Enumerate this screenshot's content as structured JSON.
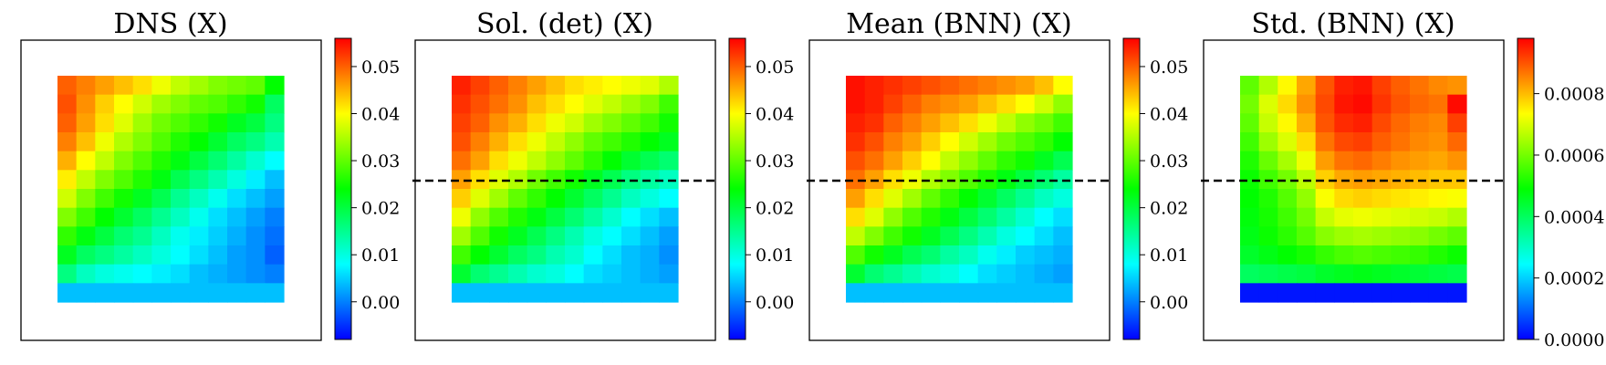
{
  "colors": [
    "#0000ff",
    "#0080ff",
    "#00ffff",
    "#00ff80",
    "#00ff00",
    "#80ff00",
    "#ffff00",
    "#ff8000",
    "#ff0000"
  ],
  "chart_data": [
    {
      "type": "heatmap",
      "title": "DNS (X)",
      "colorbar": {
        "min": -0.008,
        "max": 0.056,
        "ticks": [
          0.0,
          0.01,
          0.02,
          0.03,
          0.04,
          0.05
        ],
        "tick_labels": [
          "0.00",
          "0.01",
          "0.02",
          "0.03",
          "0.04",
          "0.05"
        ]
      },
      "dashed_line": false,
      "grid": [
        [
          0.05,
          0.048,
          0.046,
          0.044,
          0.042,
          0.039,
          0.036,
          0.034,
          0.032,
          0.031,
          0.03,
          0.024
        ],
        [
          0.051,
          0.047,
          0.043,
          0.04,
          0.037,
          0.034,
          0.032,
          0.03,
          0.029,
          0.027,
          0.025,
          0.018
        ],
        [
          0.05,
          0.046,
          0.042,
          0.038,
          0.034,
          0.031,
          0.029,
          0.027,
          0.025,
          0.022,
          0.02,
          0.016
        ],
        [
          0.048,
          0.044,
          0.039,
          0.035,
          0.032,
          0.029,
          0.026,
          0.024,
          0.021,
          0.018,
          0.016,
          0.013
        ],
        [
          0.045,
          0.04,
          0.036,
          0.032,
          0.029,
          0.026,
          0.023,
          0.02,
          0.017,
          0.014,
          0.011,
          0.008
        ],
        [
          0.041,
          0.036,
          0.032,
          0.029,
          0.026,
          0.023,
          0.019,
          0.016,
          0.013,
          0.01,
          0.007,
          0.004
        ],
        [
          0.037,
          0.032,
          0.028,
          0.025,
          0.022,
          0.019,
          0.015,
          0.012,
          0.009,
          0.006,
          0.004,
          0.002
        ],
        [
          0.032,
          0.028,
          0.024,
          0.021,
          0.018,
          0.015,
          0.012,
          0.009,
          0.006,
          0.004,
          0.002,
          0.0
        ],
        [
          0.027,
          0.023,
          0.02,
          0.017,
          0.015,
          0.012,
          0.009,
          0.007,
          0.005,
          0.003,
          0.001,
          -0.001
        ],
        [
          0.022,
          0.018,
          0.016,
          0.014,
          0.012,
          0.01,
          0.008,
          0.006,
          0.004,
          0.002,
          0.001,
          -0.002
        ],
        [
          0.016,
          0.012,
          0.01,
          0.009,
          0.008,
          0.007,
          0.006,
          0.004,
          0.003,
          0.002,
          0.001,
          0.0
        ],
        [
          0.004,
          0.004,
          0.004,
          0.004,
          0.004,
          0.004,
          0.004,
          0.004,
          0.004,
          0.004,
          0.004,
          0.004
        ]
      ]
    },
    {
      "type": "heatmap",
      "title": "Sol. (det) (X)",
      "colorbar": {
        "min": -0.008,
        "max": 0.056,
        "ticks": [
          0.0,
          0.01,
          0.02,
          0.03,
          0.04,
          0.05
        ],
        "tick_labels": [
          "0.00",
          "0.01",
          "0.02",
          "0.03",
          "0.04",
          "0.05"
        ]
      },
      "dashed_line": true,
      "grid": [
        [
          0.054,
          0.052,
          0.05,
          0.048,
          0.046,
          0.044,
          0.042,
          0.041,
          0.04,
          0.039,
          0.038,
          0.035
        ],
        [
          0.053,
          0.051,
          0.049,
          0.047,
          0.044,
          0.042,
          0.04,
          0.038,
          0.036,
          0.034,
          0.032,
          0.028
        ],
        [
          0.052,
          0.05,
          0.047,
          0.045,
          0.042,
          0.039,
          0.037,
          0.034,
          0.032,
          0.03,
          0.028,
          0.025
        ],
        [
          0.051,
          0.048,
          0.045,
          0.042,
          0.039,
          0.036,
          0.033,
          0.03,
          0.028,
          0.026,
          0.024,
          0.022
        ],
        [
          0.049,
          0.046,
          0.042,
          0.039,
          0.036,
          0.033,
          0.03,
          0.027,
          0.024,
          0.021,
          0.019,
          0.017
        ],
        [
          0.046,
          0.042,
          0.038,
          0.035,
          0.031,
          0.028,
          0.025,
          0.022,
          0.019,
          0.016,
          0.014,
          0.012
        ],
        [
          0.043,
          0.038,
          0.034,
          0.03,
          0.027,
          0.024,
          0.021,
          0.018,
          0.015,
          0.012,
          0.01,
          0.008
        ],
        [
          0.039,
          0.033,
          0.029,
          0.026,
          0.023,
          0.02,
          0.017,
          0.014,
          0.011,
          0.008,
          0.006,
          0.004
        ],
        [
          0.034,
          0.029,
          0.025,
          0.022,
          0.019,
          0.016,
          0.013,
          0.01,
          0.008,
          0.006,
          0.004,
          0.002
        ],
        [
          0.028,
          0.024,
          0.021,
          0.018,
          0.016,
          0.013,
          0.011,
          0.008,
          0.006,
          0.004,
          0.003,
          0.001
        ],
        [
          0.021,
          0.017,
          0.015,
          0.013,
          0.011,
          0.01,
          0.008,
          0.006,
          0.005,
          0.004,
          0.003,
          0.002
        ],
        [
          0.004,
          0.004,
          0.004,
          0.004,
          0.004,
          0.004,
          0.004,
          0.004,
          0.004,
          0.004,
          0.004,
          0.004
        ]
      ]
    },
    {
      "type": "heatmap",
      "title": "Mean (BNN) (X)",
      "colorbar": {
        "min": -0.008,
        "max": 0.056,
        "ticks": [
          0.0,
          0.01,
          0.02,
          0.03,
          0.04,
          0.05
        ],
        "tick_labels": [
          "0.00",
          "0.01",
          "0.02",
          "0.03",
          "0.04",
          "0.05"
        ]
      },
      "dashed_line": true,
      "grid": [
        [
          0.055,
          0.054,
          0.053,
          0.052,
          0.051,
          0.05,
          0.049,
          0.048,
          0.047,
          0.046,
          0.044,
          0.04
        ],
        [
          0.055,
          0.054,
          0.052,
          0.05,
          0.048,
          0.047,
          0.046,
          0.044,
          0.042,
          0.04,
          0.037,
          0.033
        ],
        [
          0.054,
          0.053,
          0.05,
          0.048,
          0.046,
          0.044,
          0.042,
          0.039,
          0.036,
          0.033,
          0.031,
          0.028
        ],
        [
          0.053,
          0.051,
          0.048,
          0.046,
          0.043,
          0.04,
          0.037,
          0.034,
          0.031,
          0.029,
          0.027,
          0.024
        ],
        [
          0.051,
          0.049,
          0.046,
          0.043,
          0.04,
          0.036,
          0.033,
          0.03,
          0.027,
          0.025,
          0.022,
          0.019
        ],
        [
          0.049,
          0.046,
          0.042,
          0.039,
          0.035,
          0.032,
          0.029,
          0.026,
          0.023,
          0.02,
          0.017,
          0.014
        ],
        [
          0.046,
          0.042,
          0.038,
          0.034,
          0.03,
          0.027,
          0.024,
          0.021,
          0.018,
          0.015,
          0.012,
          0.01
        ],
        [
          0.042,
          0.038,
          0.033,
          0.029,
          0.026,
          0.023,
          0.02,
          0.017,
          0.014,
          0.011,
          0.008,
          0.006
        ],
        [
          0.036,
          0.032,
          0.028,
          0.025,
          0.022,
          0.019,
          0.016,
          0.013,
          0.01,
          0.008,
          0.006,
          0.004
        ],
        [
          0.029,
          0.025,
          0.022,
          0.019,
          0.017,
          0.014,
          0.012,
          0.009,
          0.007,
          0.005,
          0.004,
          0.003
        ],
        [
          0.021,
          0.017,
          0.015,
          0.013,
          0.011,
          0.01,
          0.008,
          0.006,
          0.005,
          0.004,
          0.003,
          0.002
        ],
        [
          0.004,
          0.004,
          0.004,
          0.004,
          0.004,
          0.004,
          0.004,
          0.004,
          0.004,
          0.004,
          0.004,
          0.004
        ]
      ]
    },
    {
      "type": "heatmap",
      "title": "Std. (BNN) (X)",
      "colorbar": {
        "min": 0.0,
        "max": 0.00098,
        "ticks": [
          0.0,
          0.0002,
          0.0004,
          0.0006,
          0.0008
        ],
        "tick_labels": [
          "0.0000",
          "0.0002",
          "0.0004",
          "0.0006",
          "0.0008"
        ]
      },
      "dashed_line": true,
      "grid": [
        [
          0.00058,
          0.00066,
          0.00074,
          0.00082,
          0.0009,
          0.00095,
          0.00096,
          0.00092,
          0.00089,
          0.00087,
          0.00085,
          0.00084
        ],
        [
          0.0006,
          0.0007,
          0.00077,
          0.00084,
          0.00091,
          0.00096,
          0.00097,
          0.00093,
          0.0009,
          0.00088,
          0.00087,
          0.00097
        ],
        [
          0.00058,
          0.00068,
          0.00074,
          0.00081,
          0.0009,
          0.00094,
          0.00095,
          0.00091,
          0.00088,
          0.00086,
          0.00085,
          0.00092
        ],
        [
          0.00055,
          0.00064,
          0.0007,
          0.00077,
          0.00087,
          0.00091,
          0.00092,
          0.00089,
          0.00087,
          0.00085,
          0.00084,
          0.00088
        ],
        [
          0.00052,
          0.00059,
          0.00065,
          0.00072,
          0.00083,
          0.00087,
          0.00088,
          0.00086,
          0.00084,
          0.00083,
          0.00082,
          0.00084
        ],
        [
          0.0005,
          0.00055,
          0.0006,
          0.00067,
          0.00078,
          0.00082,
          0.00083,
          0.00082,
          0.00081,
          0.0008,
          0.00079,
          0.00079
        ],
        [
          0.00049,
          0.00052,
          0.00057,
          0.00063,
          0.00073,
          0.00077,
          0.00078,
          0.00077,
          0.00076,
          0.00075,
          0.00074,
          0.00073
        ],
        [
          0.00048,
          0.00051,
          0.00055,
          0.0006,
          0.00068,
          0.00071,
          0.00072,
          0.00071,
          0.0007,
          0.00069,
          0.00068,
          0.00066
        ],
        [
          0.00047,
          0.0005,
          0.00053,
          0.00057,
          0.00062,
          0.00064,
          0.00065,
          0.00064,
          0.00063,
          0.00062,
          0.0006,
          0.00058
        ],
        [
          0.00045,
          0.00047,
          0.00049,
          0.00051,
          0.00054,
          0.00056,
          0.00057,
          0.00056,
          0.00055,
          0.00054,
          0.00052,
          0.0005
        ],
        [
          0.0004,
          0.00041,
          0.00042,
          0.00043,
          0.00045,
          0.00046,
          0.00047,
          0.00046,
          0.00045,
          0.00044,
          0.00043,
          0.00042
        ],
        [
          2e-05,
          2e-05,
          2e-05,
          2e-05,
          2e-05,
          2e-05,
          2e-05,
          2e-05,
          2e-05,
          2e-05,
          2e-05,
          2e-05
        ]
      ]
    }
  ]
}
